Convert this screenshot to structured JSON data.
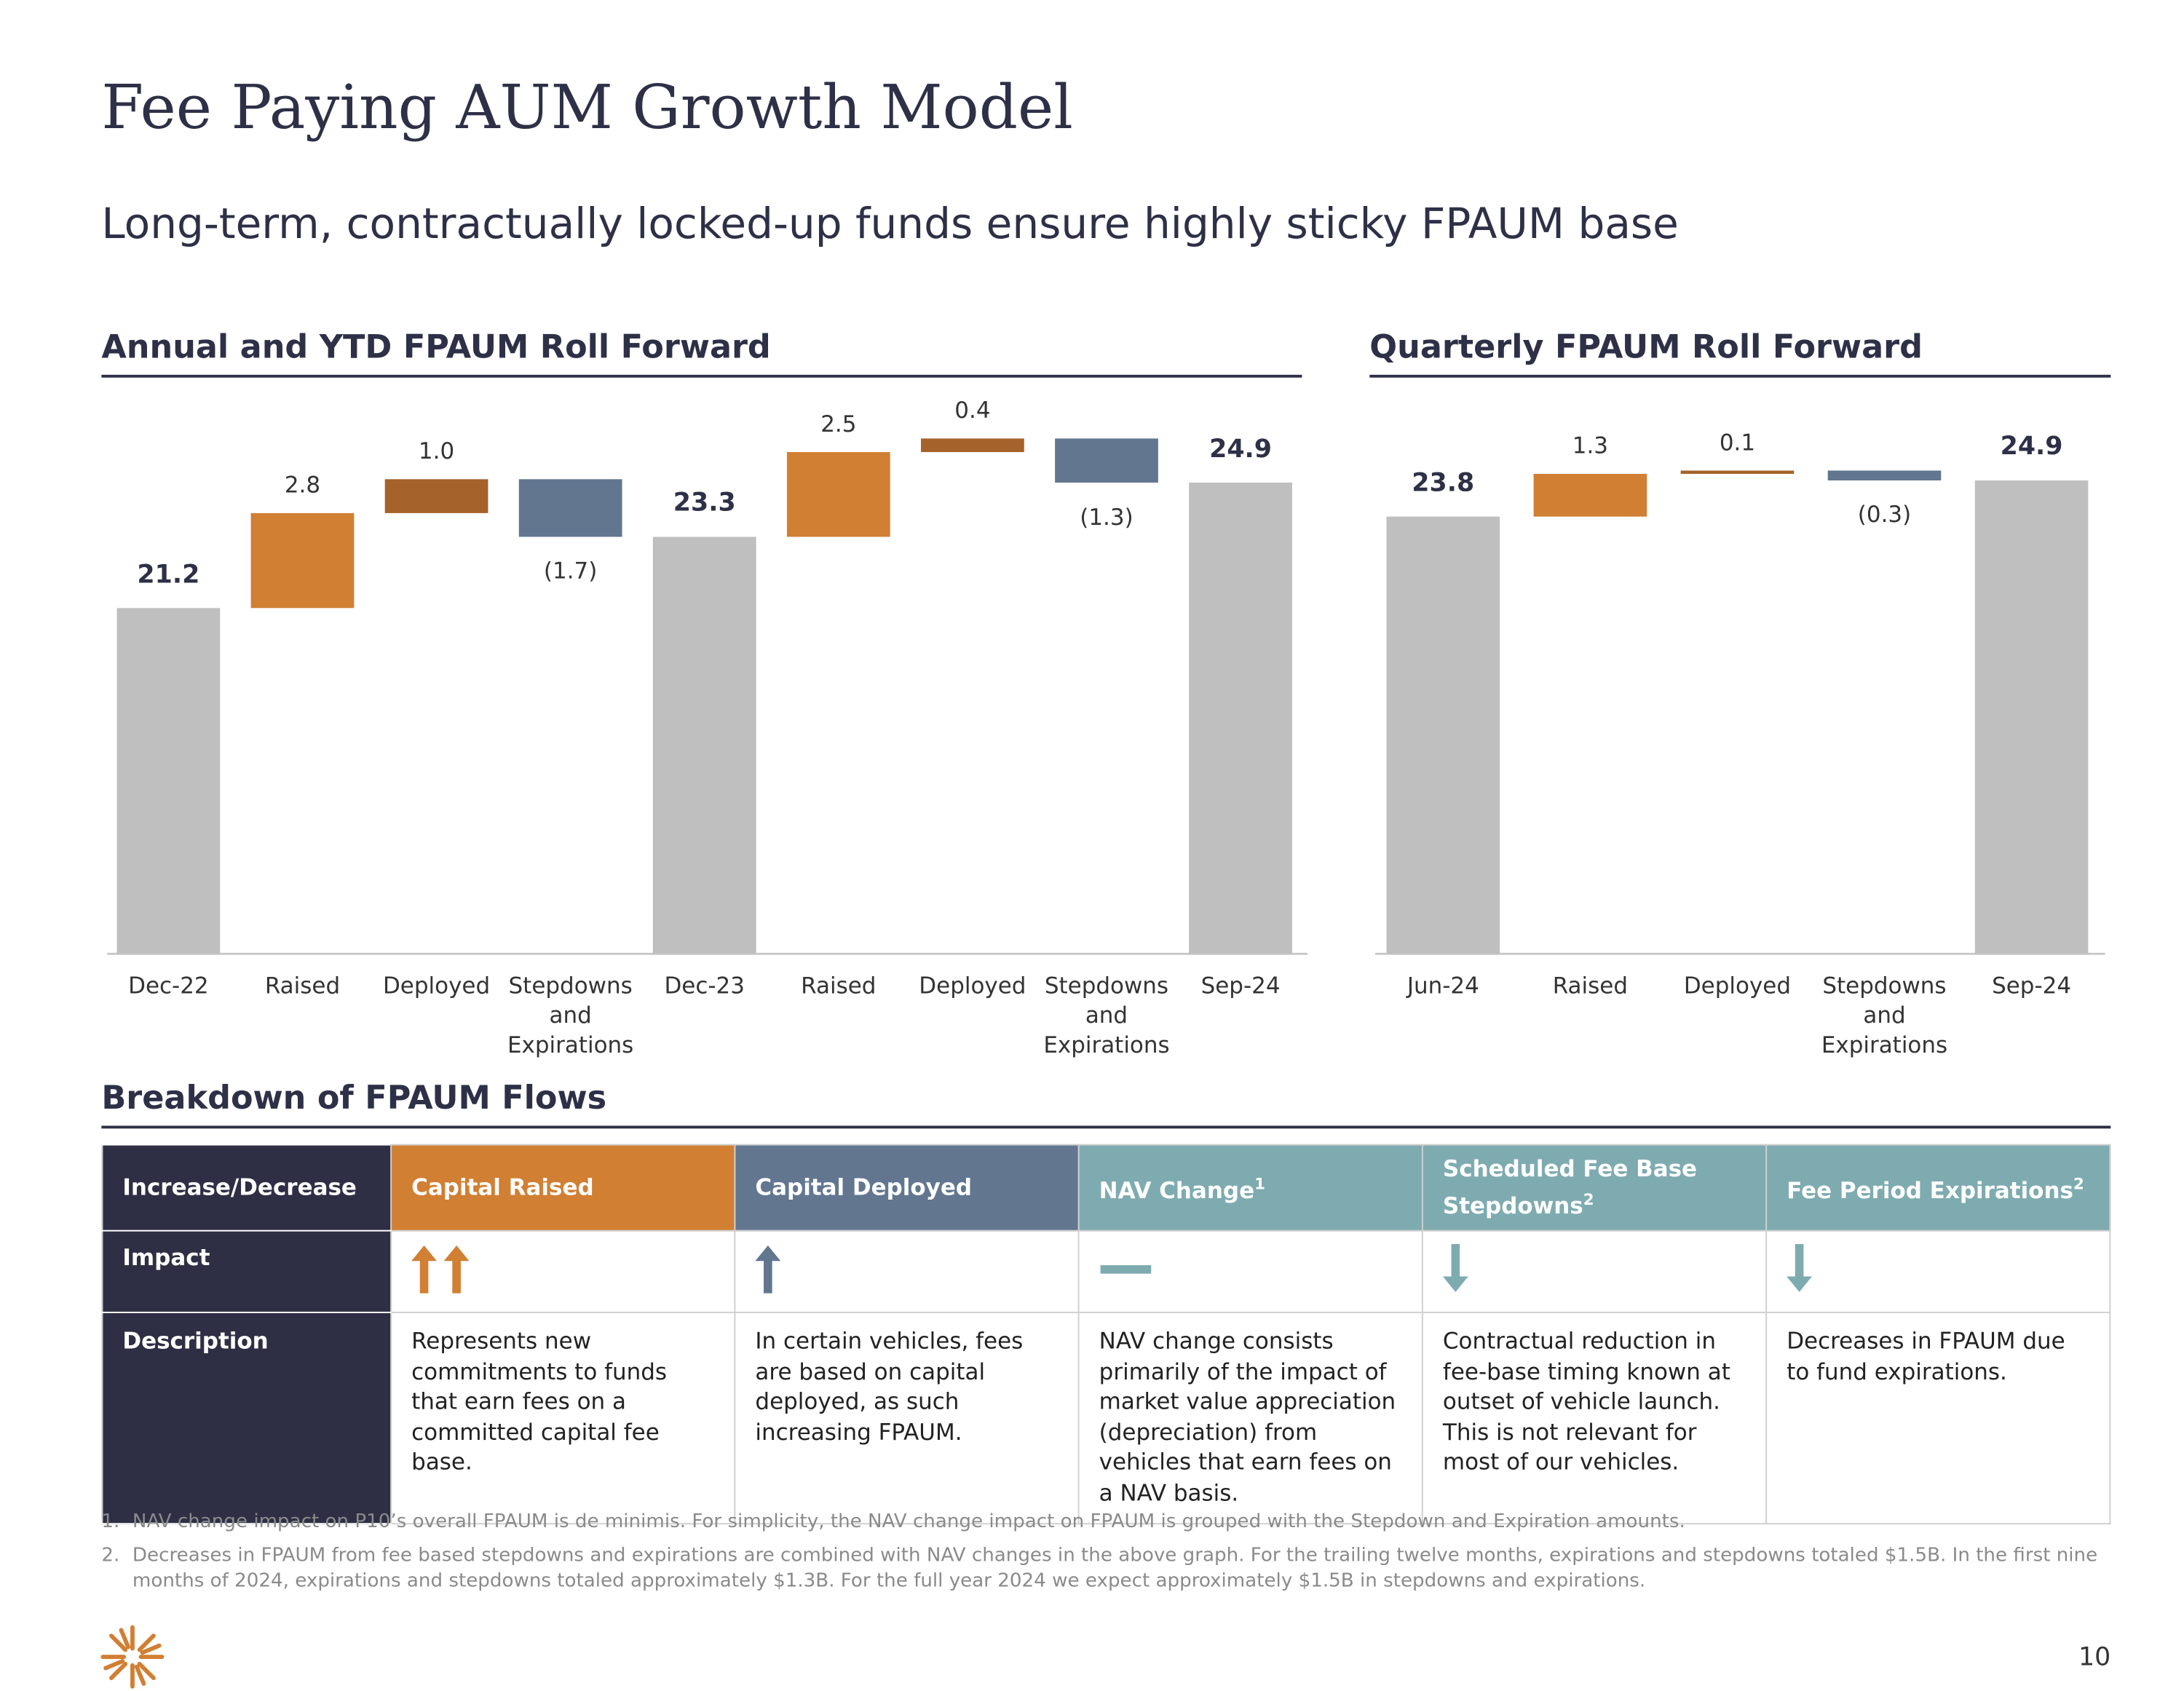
{
  "title": "Fee Paying AUM Growth Model",
  "subtitle": "Long-term, contractually locked-up funds ensure highly sticky FPAUM base",
  "chart_data": [
    {
      "type": "waterfall",
      "title": "Annual and YTD FPAUM Roll Forward",
      "categories": [
        "Dec-22",
        "Raised",
        "Deployed",
        "Stepdowns and Expirations",
        "Dec-23",
        "Raised",
        "Deployed",
        "Stepdowns and Expirations",
        "Sep-24"
      ],
      "values": [
        21.2,
        2.8,
        1.0,
        -1.7,
        23.3,
        2.5,
        0.4,
        -1.3,
        24.9
      ],
      "value_labels": [
        "21.2",
        "2.8",
        "1.0",
        "(1.7)",
        "23.3",
        "2.5",
        "0.4",
        "(1.3)",
        "24.9"
      ],
      "bar_kinds": [
        "total",
        "step",
        "step",
        "step",
        "total",
        "step",
        "step",
        "step",
        "total"
      ],
      "colors": [
        "#bfbfbf",
        "#d17f33",
        "#a5622a",
        "#627690",
        "#bfbfbf",
        "#d17f33",
        "#a5622a",
        "#627690",
        "#bfbfbf"
      ],
      "ylim": [
        11,
        27
      ]
    },
    {
      "type": "waterfall",
      "title": "Quarterly FPAUM Roll Forward",
      "categories": [
        "Jun-24",
        "Raised",
        "Deployed",
        "Stepdowns and Expirations",
        "Sep-24"
      ],
      "values": [
        23.8,
        1.3,
        0.1,
        -0.3,
        24.9
      ],
      "value_labels": [
        "23.8",
        "1.3",
        "0.1",
        "(0.3)",
        "24.9"
      ],
      "bar_kinds": [
        "total",
        "step",
        "step",
        "step",
        "total"
      ],
      "colors": [
        "#bfbfbf",
        "#d17f33",
        "#a5622a",
        "#627690",
        "#bfbfbf"
      ],
      "ylim": [
        10.5,
        27
      ]
    }
  ],
  "breakdown": {
    "title": "Breakdown of FPAUM Flows",
    "row_headers": [
      "Increase/Decrease",
      "Impact",
      "Description"
    ],
    "columns": [
      {
        "name": "Capital Raised",
        "color": "#d17f33",
        "description": "Represents new commitments to funds that earn fees on a committed capital fee base."
      },
      {
        "name": "Capital Deployed",
        "color": "#627690",
        "description": "In certain vehicles, fees are based on capital deployed, as such increasing FPAUM."
      },
      {
        "name": "NAV Change",
        "note": "1",
        "color": "#7eabb0",
        "description": "NAV change consists primarily of the impact of market value appreciation (depreciation) from vehicles that earn fees on a NAV basis."
      },
      {
        "name": "Scheduled Fee Base Stepdowns",
        "note": "2",
        "color": "#7eabb0",
        "description": "Contractual reduction in fee-base timing known at outset of vehicle launch. This is not relevant for most of our vehicles."
      },
      {
        "name": "Fee Period Expirations",
        "note": "2",
        "color": "#7eabb0",
        "description": "Decreases in FPAUM due to fund expirations."
      }
    ]
  },
  "footnotes": [
    {
      "number": "1.",
      "text": "NAV change impact on P10’s overall FPAUM is de minimis. For simplicity, the NAV change impact on FPAUM is grouped with the Stepdown and Expiration amounts."
    },
    {
      "number": "2.",
      "text": "Decreases in FPAUM from fee based stepdowns and expirations are combined with NAV changes in the above graph. For the trailing twelve months, expirations and stepdowns totaled $1.5B. In the first nine months of 2024, expirations and stepdowns totaled approximately $1.3B. For the full year 2024 we expect approximately $1.5B in stepdowns and expirations."
    }
  ],
  "page_number": "10"
}
